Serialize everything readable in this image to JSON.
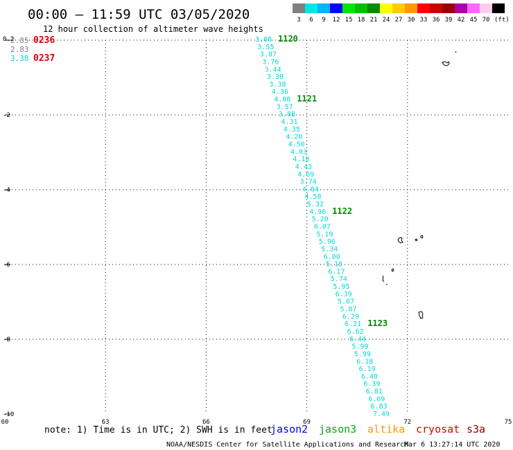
{
  "header": {
    "title": "00:00 – 11:59 UTC 03/05/2020",
    "subtitle": "12 hour collection of altimeter wave heights"
  },
  "legend": {
    "unit": "(ft)",
    "bins": [
      {
        "label": "3",
        "color": "#808080"
      },
      {
        "label": "6",
        "color": "#00e6e6"
      },
      {
        "label": "9",
        "color": "#00b4ff"
      },
      {
        "label": "12",
        "color": "#0000ff"
      },
      {
        "label": "15",
        "color": "#00e600"
      },
      {
        "label": "18",
        "color": "#00c000"
      },
      {
        "label": "21",
        "color": "#008c00"
      },
      {
        "label": "24",
        "color": "#ffff00"
      },
      {
        "label": "27",
        "color": "#ffcc00"
      },
      {
        "label": "30",
        "color": "#ff9900"
      },
      {
        "label": "33",
        "color": "#ff0000"
      },
      {
        "label": "36",
        "color": "#cc0000"
      },
      {
        "label": "39",
        "color": "#990000"
      },
      {
        "label": "42",
        "color": "#aa00aa"
      },
      {
        "label": "45",
        "color": "#ff66ff"
      },
      {
        "label": "70",
        "color": "#ffccee"
      },
      {
        "label": "",
        "color": "#000000"
      }
    ]
  },
  "map": {
    "lon_range": [
      60,
      75
    ],
    "lat_range": [
      -10,
      0
    ],
    "lon_ticks": [
      "60",
      "63",
      "66",
      "69",
      "72",
      "75"
    ],
    "lat_ticks": [
      "0.2",
      "-2",
      "-4",
      "-6",
      "-8",
      "-10"
    ],
    "grid": true
  },
  "legacy_labels": [
    {
      "text": "2.85",
      "color": "#808080",
      "pos": "row1"
    },
    {
      "text": "0236",
      "color": "#dd0000",
      "pos": "row1time"
    },
    {
      "text": "2.83",
      "color": "#808080",
      "pos": "row2"
    },
    {
      "text": "3.38",
      "color": "#00d8d8",
      "pos": "row3"
    },
    {
      "text": "0237",
      "color": "#dd0000",
      "pos": "row3time"
    }
  ],
  "track": {
    "satellite": "jason3",
    "color": "#00d8d8",
    "values": [
      "3.08",
      "3.55",
      "3.87",
      "3.76",
      "3.44",
      "3.30",
      "3.38",
      "4.36",
      "4.08",
      "3.57",
      "3.88",
      "4.31",
      "4.35",
      "4.20",
      "4.50",
      "4.03",
      "4.10",
      "4.43",
      "4.69",
      "3.74",
      "4.64",
      "4.58",
      "5.32",
      "4.96",
      "5.20",
      "6.07",
      "5.19",
      "5.96",
      "5.34",
      "6.00",
      "5.18",
      "6.17",
      "5.74",
      "5.95",
      "6.39",
      "5.67",
      "5.87",
      "6.29",
      "6.21",
      "6.62",
      "6.44",
      "5.99",
      "5.99",
      "6.18",
      "6.19",
      "6.40",
      "6.39",
      "6.81",
      "6.69",
      "6.83",
      "7.49"
    ],
    "times": [
      {
        "text": "1120",
        "index": 0
      },
      {
        "text": "1121",
        "index": 8
      },
      {
        "text": "1122",
        "index": 23
      },
      {
        "text": "1123",
        "index": 38
      }
    ],
    "time_color": "#008800"
  },
  "footer": {
    "note": "note: 1) Time is in UTC; 2) SWH is in feet",
    "credit": "NOAA/NESDIS Center for Satellite Applications and Research",
    "timestamp": "Mar  6 13:27:14 UTC 2020",
    "satellites": [
      {
        "name": "jason2",
        "color": "#0000ff"
      },
      {
        "name": "jason3",
        "color": "#00aa00"
      },
      {
        "name": "altika",
        "color": "#ff9900"
      },
      {
        "name": "cryosat",
        "color": "#dd0000"
      },
      {
        "name": "s3a",
        "color": "#880000"
      }
    ]
  },
  "colors": {
    "grid": "#000000",
    "axis": "#000000"
  }
}
